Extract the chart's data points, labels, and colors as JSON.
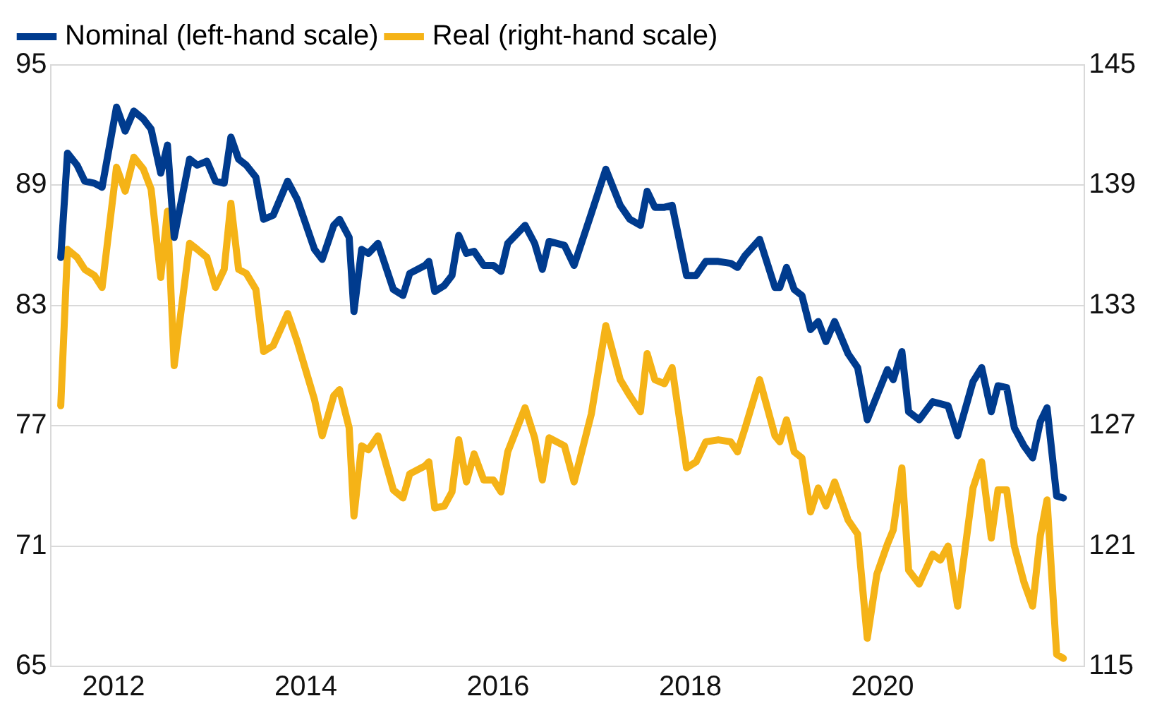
{
  "chart_data": {
    "type": "line",
    "xlim": [
      2011.35,
      2022.1
    ],
    "xticks": [
      2012,
      2014,
      2016,
      2018,
      2020
    ],
    "ylim": [
      65,
      95
    ],
    "yticks": [
      65,
      71,
      77,
      83,
      89,
      95
    ],
    "y2lim": [
      115,
      145
    ],
    "y2ticks": [
      115,
      121,
      127,
      133,
      139,
      145
    ],
    "grid": "y",
    "legend": "top left",
    "marker": "none",
    "line_style": "solid",
    "series": [
      {
        "name": "Nominal (left-hand scale)",
        "color": "#003b8e",
        "x": [
          2011.45,
          2011.52,
          2011.62,
          2011.7,
          2011.8,
          2011.88,
          2012.03,
          2012.12,
          2012.21,
          2012.31,
          2012.39,
          2012.49,
          2012.56,
          2012.63,
          2012.79,
          2012.87,
          2012.97,
          2013.06,
          2013.15,
          2013.22,
          2013.3,
          2013.38,
          2013.48,
          2013.56,
          2013.66,
          2013.81,
          2013.91,
          2014.09,
          2014.17,
          2014.29,
          2014.35,
          2014.45,
          2014.5,
          2014.58,
          2014.65,
          2014.75,
          2014.91,
          2015.01,
          2015.08,
          2015.24,
          2015.28,
          2015.34,
          2015.44,
          2015.52,
          2015.59,
          2015.67,
          2015.75,
          2015.85,
          2015.95,
          2016.03,
          2016.1,
          2016.28,
          2016.38,
          2016.46,
          2016.53,
          2016.69,
          2016.79,
          2016.97,
          2017.12,
          2017.27,
          2017.37,
          2017.48,
          2017.55,
          2017.63,
          2017.73,
          2017.81,
          2017.96,
          2018.06,
          2018.16,
          2018.29,
          2018.42,
          2018.49,
          2018.57,
          2018.72,
          2018.88,
          2018.93,
          2019.0,
          2019.08,
          2019.16,
          2019.25,
          2019.33,
          2019.41,
          2019.5,
          2019.64,
          2019.74,
          2019.84,
          2019.94,
          2020.05,
          2020.11,
          2020.2,
          2020.27,
          2020.38,
          2020.52,
          2020.68,
          2020.78,
          2020.94,
          2021.03,
          2021.13,
          2021.2,
          2021.29,
          2021.37,
          2021.47,
          2021.56,
          2021.64,
          2021.71,
          2021.81,
          2021.88
        ],
        "values": [
          85.4,
          90.6,
          90.0,
          89.2,
          89.1,
          88.9,
          92.9,
          91.7,
          92.7,
          92.3,
          91.8,
          89.6,
          91.0,
          86.4,
          90.3,
          90.0,
          90.2,
          89.2,
          89.1,
          91.4,
          90.3,
          90.0,
          89.4,
          87.3,
          87.5,
          89.2,
          88.3,
          85.8,
          85.3,
          87.0,
          87.3,
          86.4,
          82.7,
          85.8,
          85.6,
          86.1,
          83.8,
          83.5,
          84.6,
          85.0,
          85.2,
          83.7,
          84.0,
          84.5,
          86.5,
          85.6,
          85.7,
          85.0,
          85.0,
          84.7,
          86.1,
          87.0,
          86.1,
          84.8,
          86.2,
          86.0,
          85.0,
          87.6,
          89.8,
          88.0,
          87.3,
          87.0,
          88.7,
          87.9,
          87.9,
          88.0,
          84.5,
          84.5,
          85.2,
          85.2,
          85.1,
          84.9,
          85.5,
          86.3,
          83.9,
          83.9,
          84.9,
          83.8,
          83.5,
          81.8,
          82.2,
          81.2,
          82.2,
          80.6,
          79.9,
          77.3,
          78.5,
          79.8,
          79.3,
          80.7,
          77.7,
          77.3,
          78.2,
          78.0,
          76.5,
          79.2,
          79.9,
          77.7,
          79.0,
          78.9,
          76.9,
          76.0,
          75.4,
          77.2,
          77.9,
          73.5,
          73.4
        ]
      },
      {
        "name": "Real (right-hand scale)",
        "color": "#f5b317",
        "axis": "y2",
        "x": [
          2011.45,
          2011.52,
          2011.62,
          2011.7,
          2011.8,
          2011.88,
          2012.03,
          2012.12,
          2012.21,
          2012.31,
          2012.39,
          2012.49,
          2012.56,
          2012.63,
          2012.79,
          2012.87,
          2012.97,
          2013.06,
          2013.15,
          2013.22,
          2013.3,
          2013.38,
          2013.48,
          2013.56,
          2013.66,
          2013.81,
          2013.91,
          2014.09,
          2014.17,
          2014.29,
          2014.35,
          2014.45,
          2014.5,
          2014.58,
          2014.65,
          2014.75,
          2014.91,
          2015.01,
          2015.08,
          2015.24,
          2015.28,
          2015.34,
          2015.44,
          2015.52,
          2015.59,
          2015.67,
          2015.75,
          2015.85,
          2015.95,
          2016.03,
          2016.1,
          2016.28,
          2016.38,
          2016.46,
          2016.53,
          2016.69,
          2016.79,
          2016.97,
          2017.12,
          2017.27,
          2017.37,
          2017.48,
          2017.55,
          2017.63,
          2017.73,
          2017.81,
          2017.96,
          2018.06,
          2018.16,
          2018.29,
          2018.42,
          2018.49,
          2018.57,
          2018.72,
          2018.88,
          2018.93,
          2019.0,
          2019.08,
          2019.16,
          2019.25,
          2019.33,
          2019.41,
          2019.5,
          2019.64,
          2019.74,
          2019.84,
          2019.94,
          2020.05,
          2020.11,
          2020.2,
          2020.27,
          2020.38,
          2020.52,
          2020.6,
          2020.68,
          2020.78,
          2020.94,
          2021.03,
          2021.13,
          2021.2,
          2021.29,
          2021.37,
          2021.47,
          2021.56,
          2021.64,
          2021.71,
          2021.81,
          2021.88
        ],
        "values": [
          128.0,
          135.8,
          135.4,
          134.8,
          134.5,
          133.9,
          139.9,
          138.7,
          140.4,
          139.8,
          138.8,
          134.4,
          137.7,
          130.0,
          136.1,
          135.8,
          135.4,
          133.9,
          134.8,
          138.1,
          134.8,
          134.6,
          133.8,
          130.7,
          131.0,
          132.6,
          131.2,
          128.3,
          126.5,
          128.5,
          128.8,
          126.9,
          122.5,
          126.0,
          125.8,
          126.5,
          123.8,
          123.4,
          124.6,
          125.0,
          125.2,
          122.9,
          123.0,
          123.7,
          126.3,
          124.2,
          125.6,
          124.3,
          124.3,
          123.7,
          125.7,
          127.9,
          126.4,
          124.3,
          126.4,
          126.0,
          124.2,
          127.6,
          132.0,
          129.3,
          128.5,
          127.7,
          130.6,
          129.3,
          129.1,
          129.9,
          124.9,
          125.2,
          126.2,
          126.3,
          126.2,
          125.7,
          126.9,
          129.3,
          126.5,
          126.2,
          127.3,
          125.7,
          125.4,
          122.7,
          123.9,
          123.0,
          124.2,
          122.3,
          121.6,
          116.4,
          119.6,
          121.1,
          121.8,
          124.9,
          119.8,
          119.1,
          120.6,
          120.3,
          121.0,
          118.0,
          123.9,
          125.2,
          121.4,
          123.8,
          123.8,
          121.0,
          119.2,
          118.0,
          121.5,
          123.3,
          115.6,
          115.4
        ]
      }
    ]
  }
}
